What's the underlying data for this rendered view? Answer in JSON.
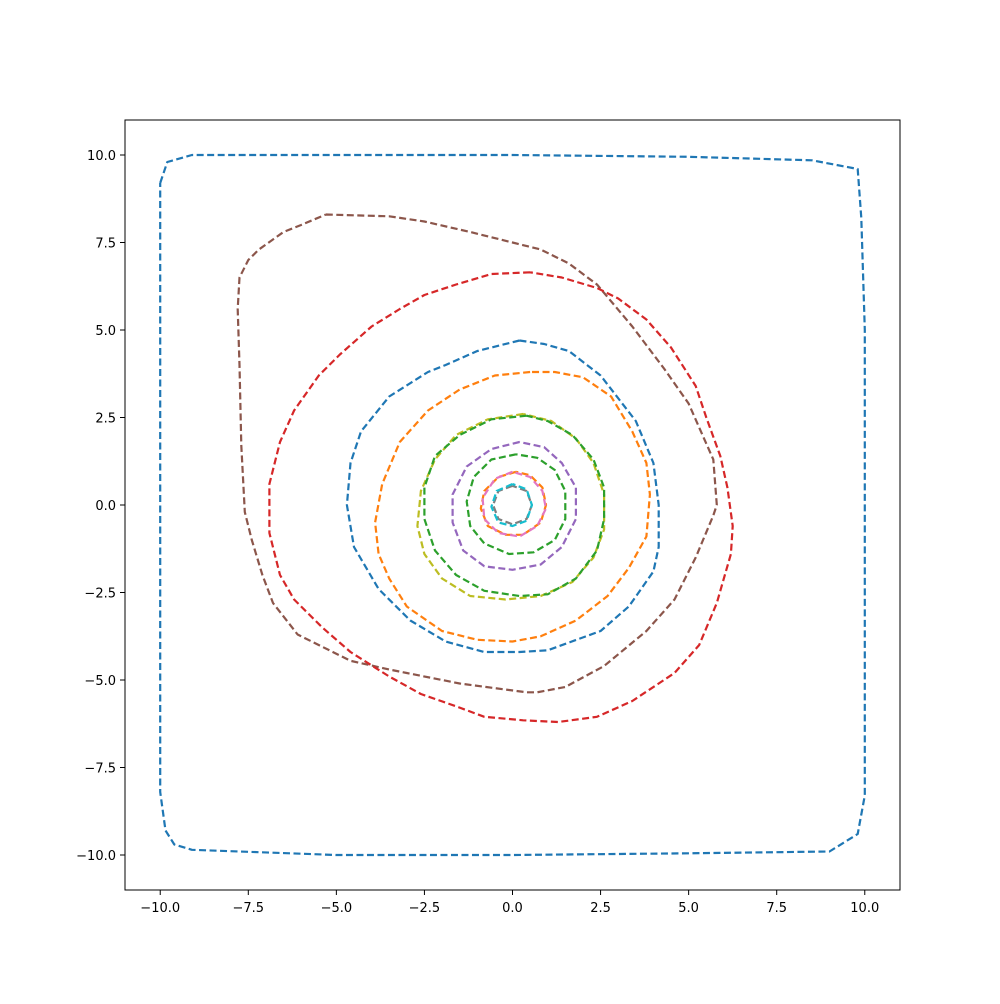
{
  "chart_data": {
    "type": "line",
    "title": "",
    "xlabel": "",
    "ylabel": "",
    "xlim": [
      -11,
      11
    ],
    "ylim": [
      -11,
      11
    ],
    "xticks": [
      -10,
      -7.5,
      -5,
      -2.5,
      0,
      2.5,
      5,
      7.5,
      10
    ],
    "xtick_labels": [
      "−10.0",
      "−7.5",
      "−5.0",
      "−2.5",
      "0.0",
      "2.5",
      "5.0",
      "7.5",
      "10.0"
    ],
    "yticks": [
      -10,
      -7.5,
      -5,
      -2.5,
      0,
      2.5,
      5,
      7.5,
      10
    ],
    "ytick_labels": [
      "−10.0",
      "−7.5",
      "−5.0",
      "−2.5",
      "0.0",
      "2.5",
      "5.0",
      "7.5",
      "10.0"
    ],
    "grid": false,
    "line_style": "dashed",
    "series": [
      {
        "color": "#1f77b4",
        "points": [
          [
            -10,
            9.2
          ],
          [
            -9.8,
            9.8
          ],
          [
            -9.1,
            10
          ],
          [
            -5,
            10
          ],
          [
            0,
            10
          ],
          [
            5,
            9.95
          ],
          [
            8.5,
            9.85
          ],
          [
            9.8,
            9.6
          ],
          [
            9.9,
            8.2
          ],
          [
            10,
            5
          ],
          [
            10,
            0
          ],
          [
            10,
            -5
          ],
          [
            10,
            -8.3
          ],
          [
            9.8,
            -9.4
          ],
          [
            9,
            -9.9
          ],
          [
            5,
            -9.95
          ],
          [
            0,
            -10
          ],
          [
            -5,
            -10
          ],
          [
            -9.1,
            -9.85
          ],
          [
            -9.6,
            -9.7
          ],
          [
            -9.85,
            -9.3
          ],
          [
            -10,
            -8.2
          ],
          [
            -10,
            -5
          ],
          [
            -10,
            0
          ],
          [
            -10,
            5
          ],
          [
            -10,
            9.2
          ]
        ]
      },
      {
        "color": "#8c564b",
        "points": [
          [
            -5.3,
            8.3
          ],
          [
            -3.5,
            8.25
          ],
          [
            -2.5,
            8.1
          ],
          [
            -1.2,
            7.8
          ],
          [
            0,
            7.5
          ],
          [
            0.8,
            7.3
          ],
          [
            1.6,
            6.9
          ],
          [
            2.4,
            6.3
          ],
          [
            3.4,
            5.1
          ],
          [
            4.3,
            3.9
          ],
          [
            5,
            2.9
          ],
          [
            5.7,
            1.3
          ],
          [
            5.8,
            0
          ],
          [
            5.7,
            -0.3
          ],
          [
            5.2,
            -1.5
          ],
          [
            4.6,
            -2.7
          ],
          [
            3.8,
            -3.6
          ],
          [
            2.6,
            -4.6
          ],
          [
            1.5,
            -5.2
          ],
          [
            0.7,
            -5.35
          ],
          [
            0.4,
            -5.35
          ],
          [
            -1.5,
            -5.1
          ],
          [
            -3,
            -4.8
          ],
          [
            -3.5,
            -4.7
          ],
          [
            -4.6,
            -4.45
          ],
          [
            -6.1,
            -3.7
          ],
          [
            -6.8,
            -2.8
          ],
          [
            -7.1,
            -2
          ],
          [
            -7.4,
            -1
          ],
          [
            -7.6,
            -0.2
          ],
          [
            -7.7,
            1.7
          ],
          [
            -7.75,
            4
          ],
          [
            -7.8,
            5.6
          ],
          [
            -7.75,
            6.5
          ],
          [
            -7.5,
            7
          ],
          [
            -7.2,
            7.3
          ],
          [
            -6.5,
            7.8
          ],
          [
            -6,
            8
          ],
          [
            -5.3,
            8.3
          ]
        ]
      },
      {
        "color": "#d62728",
        "points": [
          [
            0.5,
            6.65
          ],
          [
            -0.6,
            6.6
          ],
          [
            -1.6,
            6.3
          ],
          [
            -2.5,
            6
          ],
          [
            -3.2,
            5.6
          ],
          [
            -4,
            5.1
          ],
          [
            -4.9,
            4.3
          ],
          [
            -5.5,
            3.7
          ],
          [
            -6.2,
            2.7
          ],
          [
            -6.6,
            1.8
          ],
          [
            -6.9,
            0.6
          ],
          [
            -6.9,
            -0.8
          ],
          [
            -6.6,
            -2
          ],
          [
            -6.2,
            -2.7
          ],
          [
            -5.4,
            -3.5
          ],
          [
            -4.6,
            -4.2
          ],
          [
            -3.5,
            -4.9
          ],
          [
            -2.6,
            -5.4
          ],
          [
            -1.6,
            -5.75
          ],
          [
            -0.8,
            -6.05
          ],
          [
            0.3,
            -6.15
          ],
          [
            1.3,
            -6.2
          ],
          [
            2.4,
            -6.05
          ],
          [
            3.4,
            -5.6
          ],
          [
            4.6,
            -4.8
          ],
          [
            5.3,
            -4
          ],
          [
            5.8,
            -2.8
          ],
          [
            6.2,
            -1.4
          ],
          [
            6.25,
            -0.6
          ],
          [
            6.1,
            0.5
          ],
          [
            5.9,
            1.4
          ],
          [
            5.5,
            2.5
          ],
          [
            5.2,
            3.4
          ],
          [
            4.5,
            4.5
          ],
          [
            3.8,
            5.3
          ],
          [
            3,
            5.9
          ],
          [
            2.4,
            6.2
          ],
          [
            1.4,
            6.5
          ],
          [
            0.5,
            6.65
          ]
        ]
      },
      {
        "color": "#1f77b4",
        "points": [
          [
            0.2,
            4.7
          ],
          [
            -1,
            4.4
          ],
          [
            -1.9,
            4
          ],
          [
            -2.4,
            3.8
          ],
          [
            -3.5,
            3.1
          ],
          [
            -4.3,
            2.1
          ],
          [
            -4.6,
            1.2
          ],
          [
            -4.7,
            0
          ],
          [
            -4.5,
            -1.2
          ],
          [
            -3.8,
            -2.4
          ],
          [
            -2.9,
            -3.3
          ],
          [
            -1.9,
            -3.9
          ],
          [
            -0.8,
            -4.2
          ],
          [
            0.2,
            -4.2
          ],
          [
            1,
            -4.15
          ],
          [
            2.5,
            -3.6
          ],
          [
            3.3,
            -2.9
          ],
          [
            4,
            -1.9
          ],
          [
            4.15,
            -1.2
          ],
          [
            4.15,
            0
          ],
          [
            4,
            1.2
          ],
          [
            3.5,
            2.4
          ],
          [
            2.5,
            3.7
          ],
          [
            1.6,
            4.4
          ],
          [
            0.9,
            4.6
          ],
          [
            0.2,
            4.7
          ]
        ]
      },
      {
        "color": "#ff7f0e",
        "points": [
          [
            0.5,
            3.8
          ],
          [
            -0.5,
            3.7
          ],
          [
            -1.5,
            3.3
          ],
          [
            -2.4,
            2.7
          ],
          [
            -3.2,
            1.8
          ],
          [
            -3.7,
            0.6
          ],
          [
            -3.9,
            -0.5
          ],
          [
            -3.8,
            -1.4
          ],
          [
            -3.5,
            -2.1
          ],
          [
            -3,
            -2.9
          ],
          [
            -2,
            -3.6
          ],
          [
            -1,
            -3.85
          ],
          [
            0,
            -3.9
          ],
          [
            0.8,
            -3.75
          ],
          [
            1.8,
            -3.3
          ],
          [
            2.7,
            -2.6
          ],
          [
            3.3,
            -1.8
          ],
          [
            3.8,
            -0.9
          ],
          [
            3.9,
            0.3
          ],
          [
            3.8,
            1.2
          ],
          [
            3.4,
            2.1
          ],
          [
            2.8,
            3.1
          ],
          [
            2,
            3.65
          ],
          [
            1.2,
            3.8
          ],
          [
            0.5,
            3.8
          ]
        ]
      },
      {
        "color": "#bcbd22",
        "points": [
          [
            0.3,
            2.6
          ],
          [
            -0.7,
            2.45
          ],
          [
            -1.6,
            2
          ],
          [
            -2.2,
            1.3
          ],
          [
            -2.6,
            0.4
          ],
          [
            -2.7,
            -0.6
          ],
          [
            -2.5,
            -1.4
          ],
          [
            -2,
            -2.1
          ],
          [
            -1.2,
            -2.6
          ],
          [
            -0.2,
            -2.7
          ],
          [
            0.8,
            -2.6
          ],
          [
            1.7,
            -2.2
          ],
          [
            2.3,
            -1.5
          ],
          [
            2.6,
            -0.7
          ],
          [
            2.6,
            0.3
          ],
          [
            2.3,
            1.2
          ],
          [
            1.8,
            1.9
          ],
          [
            1.1,
            2.4
          ],
          [
            0.3,
            2.6
          ]
        ]
      },
      {
        "color": "#2ca02c",
        "points": [
          [
            0.4,
            2.55
          ],
          [
            -0.6,
            2.45
          ],
          [
            -1.5,
            2
          ],
          [
            -2.2,
            1.4
          ],
          [
            -2.5,
            0.5
          ],
          [
            -2.5,
            -0.4
          ],
          [
            -2.2,
            -1.3
          ],
          [
            -1.6,
            -2
          ],
          [
            -0.8,
            -2.45
          ],
          [
            0.2,
            -2.6
          ],
          [
            1,
            -2.55
          ],
          [
            1.8,
            -2.1
          ],
          [
            2.4,
            -1.3
          ],
          [
            2.6,
            -0.4
          ],
          [
            2.6,
            0.5
          ],
          [
            2.3,
            1.3
          ],
          [
            1.7,
            2
          ],
          [
            1,
            2.4
          ],
          [
            0.4,
            2.55
          ]
        ]
      },
      {
        "color": "#9467bd",
        "points": [
          [
            0.2,
            1.8
          ],
          [
            -0.6,
            1.6
          ],
          [
            -1.3,
            1.1
          ],
          [
            -1.7,
            0.3
          ],
          [
            -1.7,
            -0.5
          ],
          [
            -1.4,
            -1.3
          ],
          [
            -0.8,
            -1.75
          ],
          [
            0,
            -1.85
          ],
          [
            0.8,
            -1.7
          ],
          [
            1.4,
            -1.2
          ],
          [
            1.8,
            -0.4
          ],
          [
            1.8,
            0.5
          ],
          [
            1.4,
            1.2
          ],
          [
            0.9,
            1.65
          ],
          [
            0.2,
            1.8
          ]
        ]
      },
      {
        "color": "#2ca02c",
        "points": [
          [
            0.1,
            1.45
          ],
          [
            -0.6,
            1.3
          ],
          [
            -1.1,
            0.8
          ],
          [
            -1.3,
            0.1
          ],
          [
            -1.2,
            -0.6
          ],
          [
            -0.8,
            -1.1
          ],
          [
            -0.1,
            -1.4
          ],
          [
            0.6,
            -1.35
          ],
          [
            1.2,
            -1
          ],
          [
            1.5,
            -0.4
          ],
          [
            1.5,
            0.4
          ],
          [
            1.2,
            1
          ],
          [
            0.7,
            1.35
          ],
          [
            0.1,
            1.45
          ]
        ]
      },
      {
        "color": "#ff7f0e",
        "points": [
          [
            0.1,
            0.95
          ],
          [
            -0.4,
            0.8
          ],
          [
            -0.8,
            0.4
          ],
          [
            -0.9,
            -0.1
          ],
          [
            -0.7,
            -0.6
          ],
          [
            -0.2,
            -0.85
          ],
          [
            0.3,
            -0.85
          ],
          [
            0.8,
            -0.5
          ],
          [
            0.95,
            0
          ],
          [
            0.85,
            0.5
          ],
          [
            0.5,
            0.85
          ],
          [
            0.1,
            0.95
          ]
        ]
      },
      {
        "color": "#e377c2",
        "points": [
          [
            0,
            0.95
          ],
          [
            -0.5,
            0.75
          ],
          [
            -0.85,
            0.2
          ],
          [
            -0.8,
            -0.4
          ],
          [
            -0.4,
            -0.8
          ],
          [
            0.2,
            -0.9
          ],
          [
            0.7,
            -0.6
          ],
          [
            0.95,
            -0.1
          ],
          [
            0.85,
            0.4
          ],
          [
            0.5,
            0.8
          ],
          [
            0,
            0.95
          ]
        ]
      },
      {
        "color": "#7f7f7f",
        "points": [
          [
            0,
            0.55
          ],
          [
            -0.4,
            0.4
          ],
          [
            -0.55,
            0
          ],
          [
            -0.4,
            -0.4
          ],
          [
            0,
            -0.55
          ],
          [
            0.4,
            -0.4
          ],
          [
            0.55,
            0
          ],
          [
            0.4,
            0.4
          ],
          [
            0,
            0.55
          ]
        ]
      },
      {
        "color": "#17becf",
        "points": [
          [
            0,
            0.6
          ],
          [
            -0.45,
            0.4
          ],
          [
            -0.6,
            -0.05
          ],
          [
            -0.4,
            -0.5
          ],
          [
            0,
            -0.6
          ],
          [
            0.4,
            -0.45
          ],
          [
            0.55,
            0
          ],
          [
            0.4,
            0.45
          ],
          [
            0,
            0.6
          ]
        ]
      }
    ]
  }
}
